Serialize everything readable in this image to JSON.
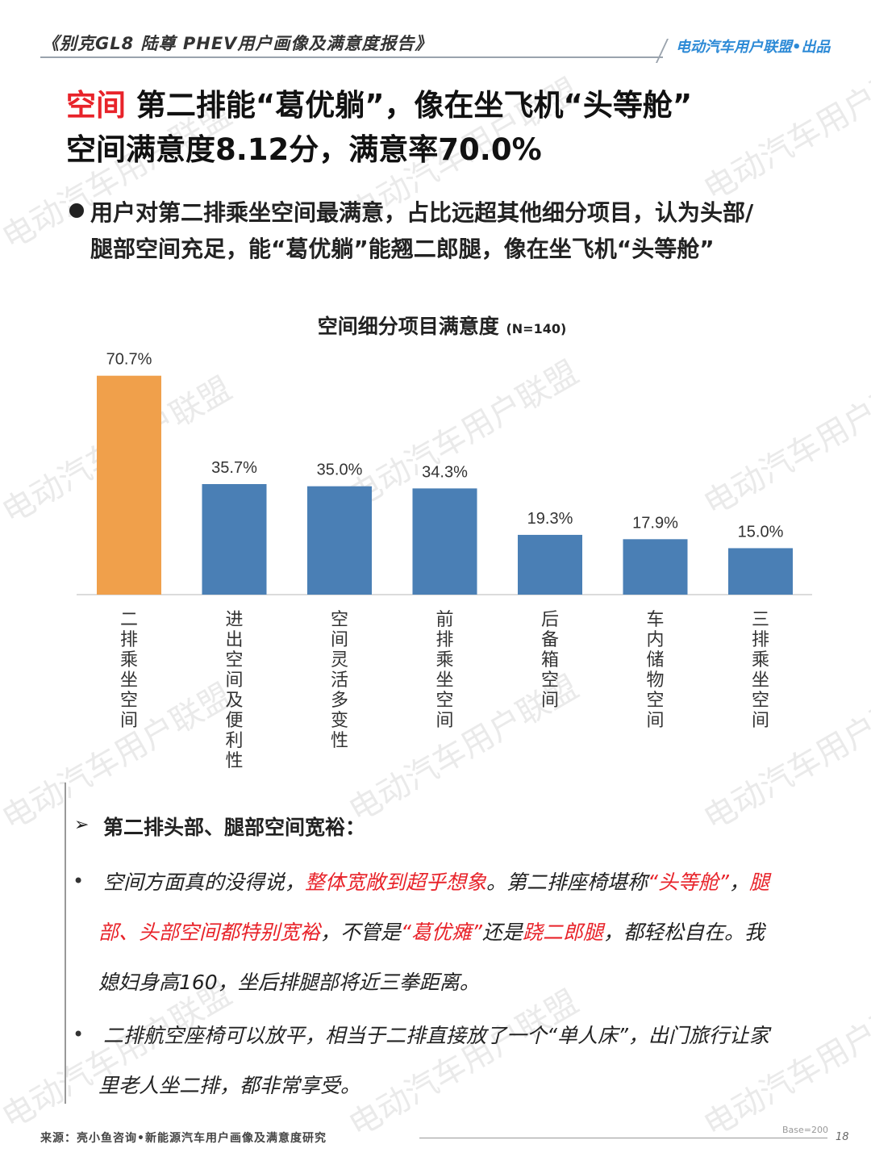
{
  "header": {
    "report_title": "《别克GL8 陆尊 PHEV用户画像及满意度报告》",
    "brand": "电动汽车用户联盟•出品"
  },
  "headline": {
    "keyword": "空间",
    "line1_rest": " 第二排能“葛优躺”，像在坐飞机“头等舱”",
    "line2": "空间满意度8.12分，满意率70.0%"
  },
  "summary": {
    "line1": "用户对第二排乘坐空间最满意，占比远超其他细分项目，认为头部/",
    "line2": "腿部空间充足，能“葛优躺”能翘二郎腿，像在坐飞机“头等舱”"
  },
  "chart_data": {
    "type": "bar",
    "title": "空间细分项目满意度",
    "sample_note": "(N=140)",
    "categories": [
      "二排乘坐空间",
      "进出空间及便利性",
      "空间灵活多变性",
      "前排乘坐空间",
      "后备箱空间",
      "车内储物空间",
      "三排乘坐空间"
    ],
    "values": [
      70.7,
      35.7,
      35.0,
      34.3,
      19.3,
      17.9,
      15.0
    ],
    "value_labels": [
      "70.7%",
      "35.7%",
      "35.0%",
      "34.3%",
      "19.3%",
      "17.9%",
      "15.0%"
    ],
    "unit": "%",
    "ylim": [
      0,
      80
    ],
    "highlight_index": 0,
    "colors": {
      "highlight": "#f0a04b",
      "default": "#4a7fb5"
    },
    "grid": false,
    "legend": "none"
  },
  "quotes": {
    "heading_arrow": "➢",
    "heading": "第二排头部、腿部空间宽裕：",
    "bullet": "•",
    "q1": {
      "l1a": "空间方面真的没得说，",
      "l1b": "整体宽敞到超乎想象",
      "l1c": "。第二排座椅堪称",
      "l1d": "“头等舱”",
      "l1e": "，",
      "l1f": "腿",
      "l2a": "部、头部空间都特别宽裕",
      "l2b": "，不管是",
      "l2c": "“葛优瘫”",
      "l2d": "还是",
      "l2e": "跷二郎腿",
      "l2f": "，都轻松自在。我",
      "l3": "媳妇身高160，坐后排腿部将近三拳距离。"
    },
    "q2": {
      "l1": "二排航空座椅可以放平，相当于二排直接放了一个“单人床”，出门旅行让家",
      "l2": "里老人坐二排，都非常享受。"
    }
  },
  "footer": {
    "source": "来源：亮小鱼咨询•新能源汽车用户画像及满意度研究",
    "base": "Base=200",
    "page": "18"
  },
  "watermark": "电动汽车用户联盟"
}
